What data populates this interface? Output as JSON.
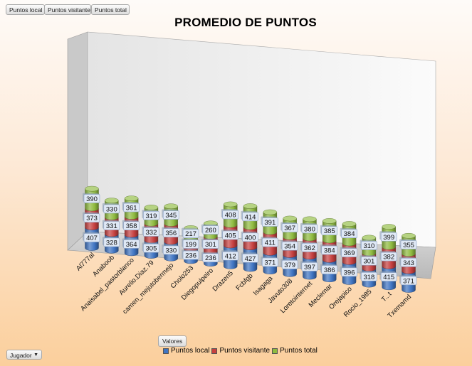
{
  "field_buttons": {
    "local": "Puntos local",
    "visitante": "Puntos visitante",
    "total": "Puntos total"
  },
  "valores_label": "Valores",
  "filter": {
    "label": "Jugador",
    "arrow": "▼"
  },
  "colors": {
    "local": "#3f74c2",
    "visitante": "#c6403f",
    "total": "#8fbb3f"
  },
  "chart_data": {
    "type": "bar",
    "stacked": true,
    "title": "PROMEDIO DE PUNTOS",
    "xlabel": "",
    "ylabel": "",
    "grid": false,
    "legend_position": "bottom",
    "categories": [
      "Al777al",
      "Anaboob",
      "Anaisabel_pastorblanco",
      "Aurelio.Diaz.79",
      "camen_mejutobermejo",
      "Cholo253",
      "Diegopulpeiro",
      "Drazen5",
      "Fcbfgb",
      "Isagaga",
      "Javuto308",
      "Loretointernet",
      "Meclemar",
      "Orejapico",
      "Rocio_1985",
      "T...t",
      "Txemamd"
    ],
    "series": [
      {
        "name": "Puntos local",
        "values": [
          407,
          328,
          364,
          305,
          330,
          236,
          236,
          412,
          427,
          371,
          379,
          397,
          386,
          396,
          318,
          415,
          371
        ]
      },
      {
        "name": "Puntos visitante",
        "values": [
          373,
          331,
          358,
          332,
          356,
          199,
          301,
          405,
          400,
          411,
          354,
          362,
          384,
          369,
          301,
          382,
          343
        ]
      },
      {
        "name": "Puntos total",
        "values": [
          390,
          330,
          361,
          319,
          345,
          217,
          260,
          408,
          414,
          391,
          367,
          380,
          385,
          384,
          310,
          399,
          355
        ]
      }
    ]
  }
}
